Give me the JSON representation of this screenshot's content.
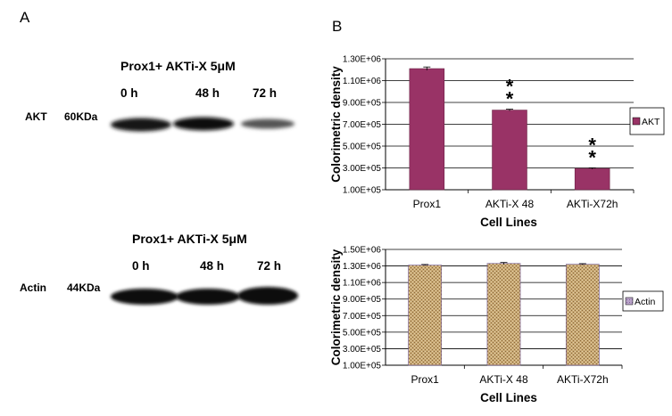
{
  "panel_a": {
    "label": "A",
    "blots": [
      {
        "title": "Prox1+ AKTi-X 5μM",
        "lanes": [
          "0 h",
          "48 h",
          "72 h"
        ],
        "protein": "AKT",
        "mw": "60KDa"
      },
      {
        "title": "Prox1+ AKTi-X 5μM",
        "lanes": [
          "0 h",
          "48 h",
          "72 h"
        ],
        "protein": "Actin",
        "mw": "44KDa"
      }
    ]
  },
  "panel_b": {
    "label": "B"
  },
  "colors": {
    "akt_bar": "#993366",
    "actin_bar": "#c8a874",
    "grid": "#000000"
  },
  "chart_data": [
    {
      "type": "bar",
      "title": "",
      "xlabel": "Cell Lines",
      "ylabel": "Colorimetric density",
      "categories": [
        "Prox1",
        "AKTi-X 48",
        "AKTi-X72h"
      ],
      "series": [
        {
          "name": "AKT",
          "values": [
            1210000,
            830000,
            295000
          ],
          "errors": [
            15000,
            8000,
            6000
          ]
        }
      ],
      "ylim": [
        100000,
        1300000
      ],
      "yticks": [
        "1.00E+05",
        "3.00E+05",
        "5.00E+05",
        "7.00E+05",
        "9.00E+05",
        "1.10E+06",
        "1.30E+06"
      ],
      "annotations": [
        "**",
        "**"
      ],
      "legend": "right",
      "grid": true
    },
    {
      "type": "bar",
      "title": "",
      "xlabel": "Cell Lines",
      "ylabel": "Colorimetric density",
      "categories": [
        "Prox1",
        "AKTi-X 48",
        "AKTi-X72h"
      ],
      "series": [
        {
          "name": "Actin",
          "values": [
            1310000,
            1330000,
            1320000
          ],
          "errors": [
            8000,
            12000,
            8000
          ]
        }
      ],
      "ylim": [
        100000,
        1500000
      ],
      "yticks": [
        "1.00E+05",
        "3.00E+05",
        "5.00E+05",
        "7.00E+05",
        "9.00E+05",
        "1.10E+06",
        "1.30E+06",
        "1.50E+06"
      ],
      "legend": "right",
      "grid": true
    }
  ]
}
